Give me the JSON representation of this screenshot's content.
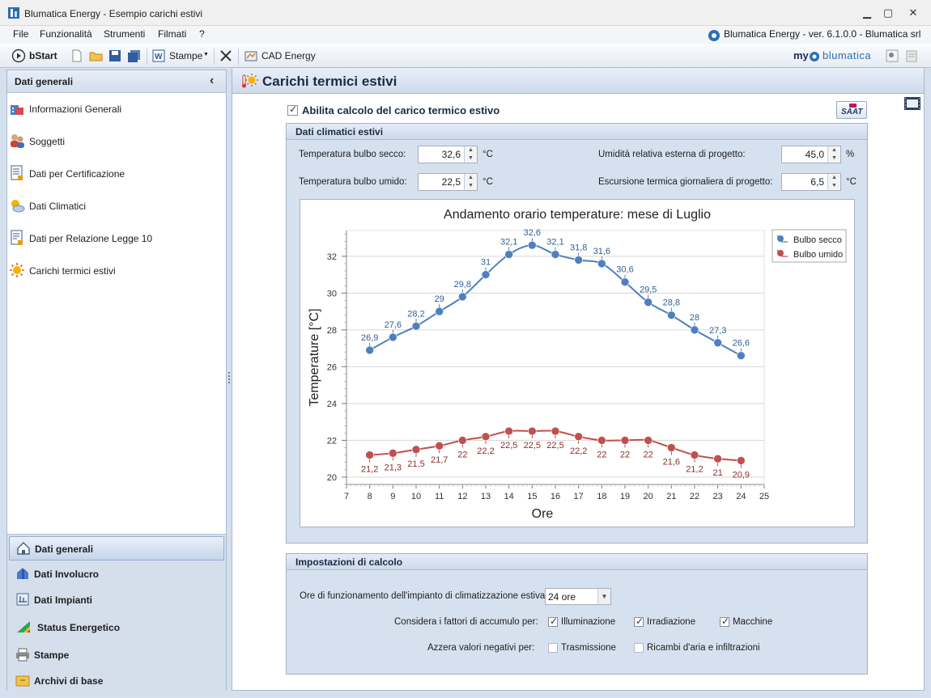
{
  "window": {
    "title": "Blumatica Energy - Esempio carichi estivi",
    "controls": {
      "minimize": "▁",
      "maximize": "▢",
      "close": "✕"
    }
  },
  "menu": {
    "items": [
      "File",
      "Funzionalità",
      "Strumenti",
      "Filmati",
      "?"
    ],
    "version_text": "Blumatica Energy - ver. 6.1.0.0 - Blumatica srl"
  },
  "toolbar": {
    "bstart": "bStart",
    "stampe": "Stampe",
    "cad_energy": "CAD Energy",
    "brand_my": "my",
    "brand_name": "blumatica"
  },
  "sidebar": {
    "header": "Dati generali",
    "collapse_glyph": "‹",
    "items": [
      {
        "label": "Informazioni Generali",
        "icon": "building-icon"
      },
      {
        "label": "Soggetti",
        "icon": "people-icon"
      },
      {
        "label": "Dati per Certificazione",
        "icon": "document-icon"
      },
      {
        "label": "Dati Climatici",
        "icon": "weather-icon"
      },
      {
        "label": "Dati per Relazione Legge 10",
        "icon": "report-icon"
      },
      {
        "label": "Carichi termici estivi",
        "icon": "sun-icon"
      }
    ],
    "groups": [
      {
        "label": "Dati generali",
        "selected": true
      },
      {
        "label": "Dati Involucro",
        "selected": false
      },
      {
        "label": "Dati Impianti",
        "selected": false
      },
      {
        "label": "Status Energetico",
        "selected": false
      },
      {
        "label": "Stampe",
        "selected": false
      },
      {
        "label": "Archivi di base",
        "selected": false
      }
    ]
  },
  "main": {
    "title": "Carichi termici estivi",
    "enable_label": "Abilita calcolo del carico termico estivo",
    "enable_checked": true,
    "saat_label": "SAAT",
    "climate": {
      "header": "Dati climatici estivi",
      "dry_bulb_label": "Temperatura bulbo secco:",
      "dry_bulb_value": "32,6",
      "dry_bulb_unit": "°C",
      "wet_bulb_label": "Temperatura bulbo umido:",
      "wet_bulb_value": "22,5",
      "wet_bulb_unit": "°C",
      "humidity_label": "Umidità relativa esterna di progetto:",
      "humidity_value": "45,0",
      "humidity_unit": "%",
      "excursion_label": "Escursione termica giornaliera di progetto:",
      "excursion_value": "6,5",
      "excursion_unit": "°C"
    },
    "settings": {
      "header": "Impostazioni di calcolo",
      "hours_label": "Ore di funzionamento dell'impianto di climatizzazione estiva:",
      "hours_value": "24 ore",
      "accumulo_label": "Considera i fattori di accumulo per:",
      "accumulo_options": [
        {
          "label": "Illuminazione",
          "checked": true
        },
        {
          "label": "Irradiazione",
          "checked": true
        },
        {
          "label": "Macchine",
          "checked": true
        }
      ],
      "azzera_label": "Azzera valori negativi per:",
      "azzera_options": [
        {
          "label": "Trasmissione",
          "checked": false
        },
        {
          "label": "Ricambi d'aria e infiltrazioni",
          "checked": false
        }
      ]
    }
  },
  "chart_data": {
    "type": "line",
    "title": "Andamento orario temperature: mese di Luglio",
    "xlabel": "Ore",
    "ylabel": "Temperature [°C]",
    "xlim": [
      7,
      25
    ],
    "ylim": [
      19.6,
      33.4
    ],
    "x_ticks": [
      7,
      8,
      9,
      10,
      11,
      12,
      13,
      14,
      15,
      16,
      17,
      18,
      19,
      20,
      21,
      22,
      23,
      24,
      25
    ],
    "y_ticks": [
      20,
      22,
      24,
      26,
      28,
      30,
      32
    ],
    "grid": true,
    "legend_position": "top-right",
    "x": [
      8,
      9,
      10,
      11,
      12,
      13,
      14,
      15,
      16,
      17,
      18,
      19,
      20,
      21,
      22,
      23,
      24
    ],
    "series": [
      {
        "name": "Bulbo secco",
        "color": "#4f7fbf",
        "label_color": "#2f5f9a",
        "values": [
          26.9,
          27.6,
          28.2,
          29,
          29.8,
          31,
          32.1,
          32.6,
          32.1,
          31.8,
          31.6,
          30.6,
          29.5,
          28.8,
          28,
          27.3,
          26.6
        ],
        "labels": [
          "26,9",
          "27,6",
          "28,2",
          "29",
          "29,8",
          "31",
          "32,1",
          "32,6",
          "32,1",
          "31,8",
          "31,6",
          "30,6",
          "29,5",
          "28,8",
          "28",
          "27,3",
          "26,6"
        ],
        "label_side": "above"
      },
      {
        "name": "Bulbo umido",
        "color": "#c0504d",
        "label_color": "#8b2d2a",
        "values": [
          21.2,
          21.3,
          21.5,
          21.7,
          22,
          22.2,
          22.5,
          22.5,
          22.5,
          22.2,
          22,
          22,
          22,
          21.6,
          21.2,
          21,
          20.9
        ],
        "labels": [
          "21,2",
          "21,3",
          "21,5",
          "21,7",
          "22",
          "22,2",
          "22,5",
          "22,5",
          "22,5",
          "22,2",
          "22",
          "22",
          "22",
          "21,6",
          "21,2",
          "21",
          "20,9"
        ],
        "label_side": "below"
      }
    ]
  }
}
